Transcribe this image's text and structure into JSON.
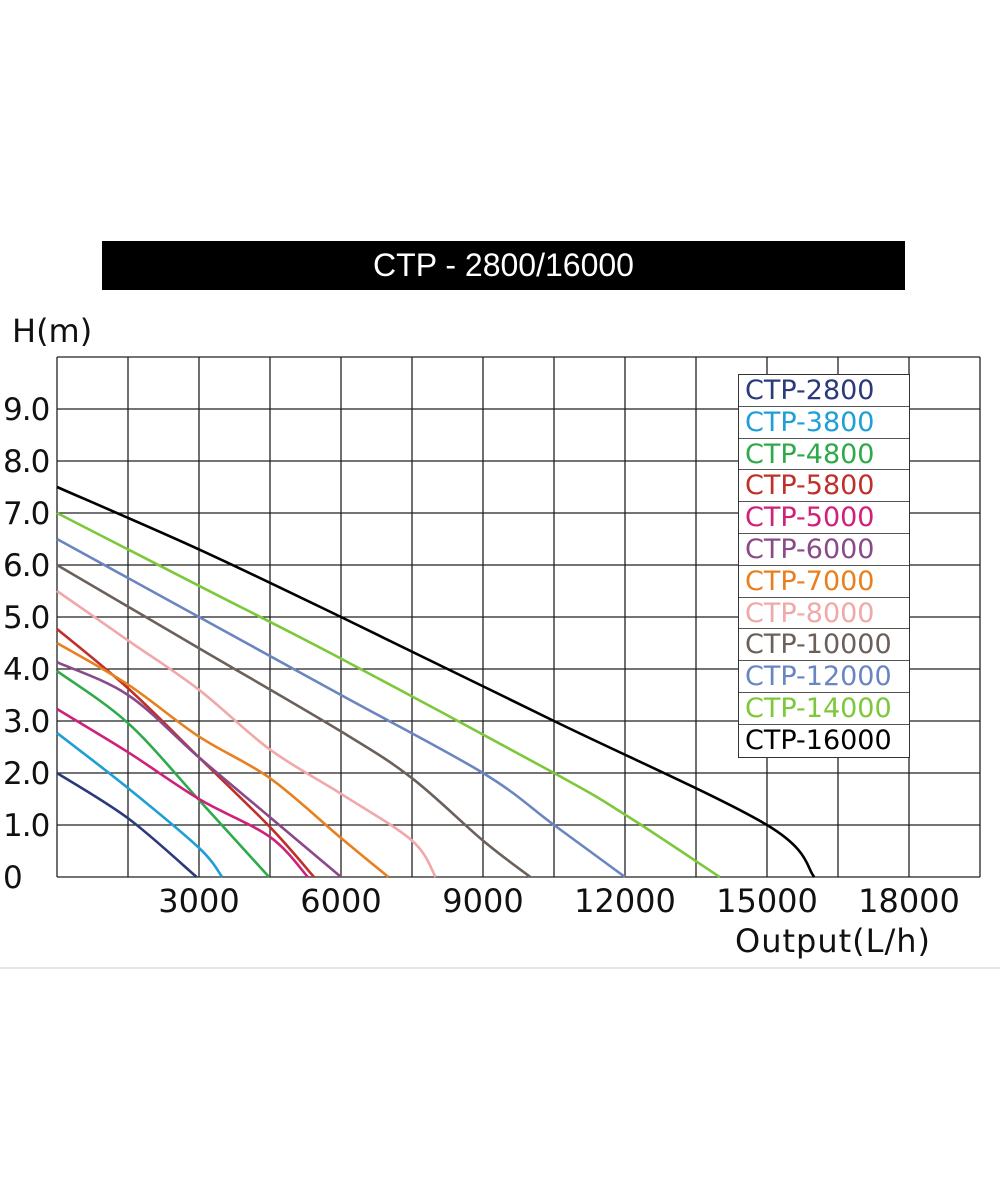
{
  "chart_data": {
    "type": "line",
    "title": "CTP - 2800/16000",
    "xlabel": "Output(L/h)",
    "ylabel": "H(m)",
    "xlim": [
      0,
      19500
    ],
    "ylim": [
      0,
      10
    ],
    "x_grid_step": 1500,
    "y_grid_step": 1,
    "grid": true,
    "legend_position": "top-right",
    "x_ticks": [
      {
        "value": 3000,
        "label": "3000"
      },
      {
        "value": 6000,
        "label": "6000"
      },
      {
        "value": 9000,
        "label": "9000"
      },
      {
        "value": 12000,
        "label": "12000"
      },
      {
        "value": 15000,
        "label": "15000"
      },
      {
        "value": 18000,
        "label": "18000"
      }
    ],
    "y_ticks": [
      {
        "value": 0,
        "label": "0"
      },
      {
        "value": 1,
        "label": "1.0"
      },
      {
        "value": 2,
        "label": "2.0"
      },
      {
        "value": 3,
        "label": "3.0"
      },
      {
        "value": 4,
        "label": "4.0"
      },
      {
        "value": 5,
        "label": "5.0"
      },
      {
        "value": 6,
        "label": "6.0"
      },
      {
        "value": 7,
        "label": "7.0"
      },
      {
        "value": 8,
        "label": "8.0"
      },
      {
        "value": 9,
        "label": "9.0"
      }
    ],
    "series": [
      {
        "name": "CTP-2800",
        "color": "#2b3a7a",
        "points": [
          [
            0,
            2.0
          ],
          [
            1500,
            1.13
          ],
          [
            2950,
            0
          ]
        ]
      },
      {
        "name": "CTP-3800",
        "color": "#1e9fd6",
        "points": [
          [
            0,
            2.77
          ],
          [
            1500,
            1.71
          ],
          [
            3000,
            0.56
          ],
          [
            3490,
            0
          ]
        ]
      },
      {
        "name": "CTP-4800",
        "color": "#2eaa4a",
        "points": [
          [
            0,
            3.96
          ],
          [
            1500,
            2.96
          ],
          [
            3000,
            1.48
          ],
          [
            4480,
            0
          ]
        ]
      },
      {
        "name": "CTP-5800",
        "color": "#c0302a",
        "points": [
          [
            0,
            4.77
          ],
          [
            1500,
            3.63
          ],
          [
            3000,
            2.3
          ],
          [
            4500,
            0.96
          ],
          [
            5430,
            0
          ]
        ]
      },
      {
        "name": "CTP-5000",
        "color": "#d0207a",
        "points": [
          [
            0,
            3.23
          ],
          [
            1500,
            2.4
          ],
          [
            3000,
            1.5
          ],
          [
            4500,
            0.77
          ],
          [
            5300,
            0
          ]
        ]
      },
      {
        "name": "CTP-6000",
        "color": "#8a4a8a",
        "points": [
          [
            0,
            4.13
          ],
          [
            1500,
            3.5
          ],
          [
            3000,
            2.3
          ],
          [
            4500,
            1.15
          ],
          [
            6000,
            0
          ]
        ]
      },
      {
        "name": "CTP-7000",
        "color": "#e8801e",
        "points": [
          [
            0,
            4.5
          ],
          [
            1500,
            3.7
          ],
          [
            3000,
            2.7
          ],
          [
            4500,
            1.9
          ],
          [
            6000,
            0.75
          ],
          [
            7000,
            0
          ]
        ]
      },
      {
        "name": "CTP-8000",
        "color": "#f0a8a8",
        "points": [
          [
            0,
            5.5
          ],
          [
            1500,
            4.55
          ],
          [
            3000,
            3.6
          ],
          [
            4500,
            2.45
          ],
          [
            6000,
            1.6
          ],
          [
            7500,
            0.7
          ],
          [
            8000,
            0
          ]
        ]
      },
      {
        "name": "CTP-10000",
        "color": "#6b605a",
        "points": [
          [
            0,
            6.0
          ],
          [
            3000,
            4.4
          ],
          [
            6000,
            2.8
          ],
          [
            7500,
            1.9
          ],
          [
            9000,
            0.7
          ],
          [
            10000,
            0
          ]
        ]
      },
      {
        "name": "CTP-12000",
        "color": "#6a86c0",
        "points": [
          [
            0,
            6.5
          ],
          [
            3000,
            5.0
          ],
          [
            6000,
            3.5
          ],
          [
            9000,
            2.0
          ],
          [
            10500,
            1.0
          ],
          [
            12000,
            0
          ]
        ]
      },
      {
        "name": "CTP-14000",
        "color": "#7cc83a",
        "points": [
          [
            0,
            7.0
          ],
          [
            3000,
            5.6
          ],
          [
            6000,
            4.2
          ],
          [
            10500,
            2.0
          ],
          [
            12000,
            1.2
          ],
          [
            14000,
            0
          ]
        ]
      },
      {
        "name": "CTP-16000",
        "color": "#000000",
        "points": [
          [
            0,
            7.5
          ],
          [
            3000,
            6.3
          ],
          [
            6000,
            5.0
          ],
          [
            10500,
            3.0
          ],
          [
            15000,
            1.0
          ],
          [
            16000,
            0
          ]
        ]
      }
    ]
  }
}
